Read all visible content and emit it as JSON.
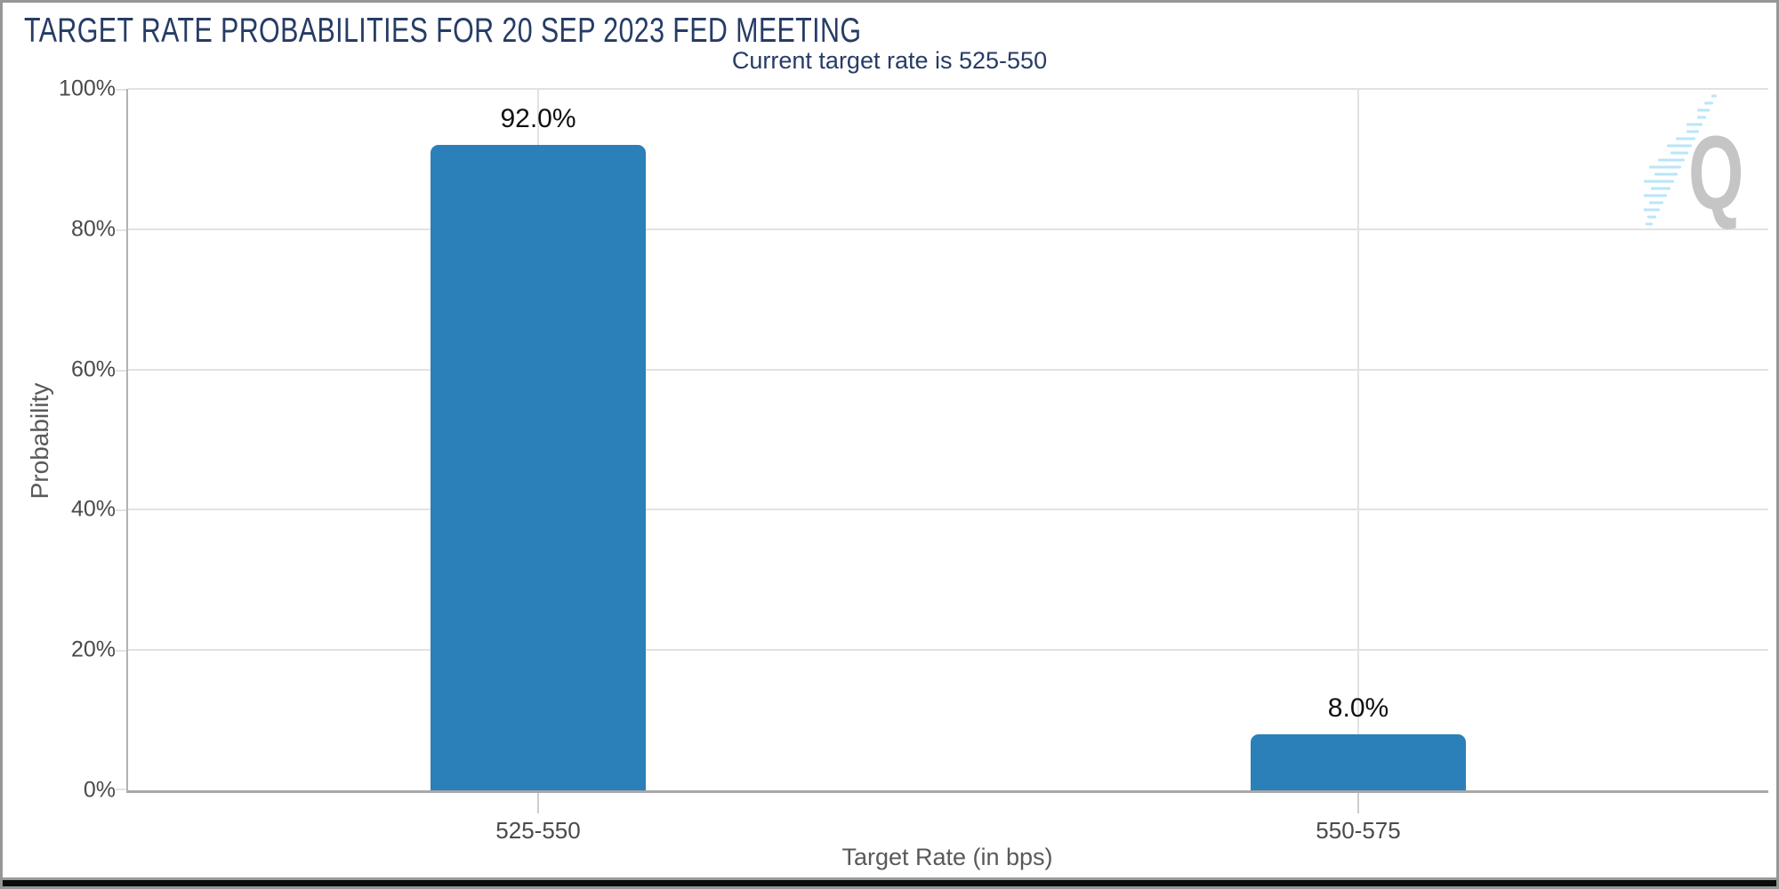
{
  "chart_data": {
    "type": "bar",
    "title": "TARGET RATE PROBABILITIES FOR 20 SEP 2023 FED MEETING",
    "subtitle": "Current target rate is 525-550",
    "categories": [
      "525-550",
      "550-575"
    ],
    "values": [
      92.0,
      8.0
    ],
    "value_labels": [
      "92.0%",
      "8.0%"
    ],
    "xlabel": "Target Rate (in bps)",
    "ylabel": "Probability",
    "ylim": [
      0,
      100
    ],
    "ytick_values": [
      0,
      20,
      40,
      60,
      80,
      100
    ],
    "ytick_labels": [
      "0%",
      "20%",
      "40%",
      "60%",
      "80%",
      "100%"
    ],
    "grid": true,
    "legend_position": "none",
    "watermark": "Q",
    "colors": {
      "bar": "#2b80b9",
      "title": "#263c66",
      "axis_text": "#4a4a4a",
      "axis_title_text": "#595959",
      "gridline": "#e2e2e2",
      "axis_line": "#a8a8a8",
      "value_label": "#101010",
      "watermark_q": "#c5c5c5",
      "watermark_dashes": "#b8e6f8"
    }
  }
}
